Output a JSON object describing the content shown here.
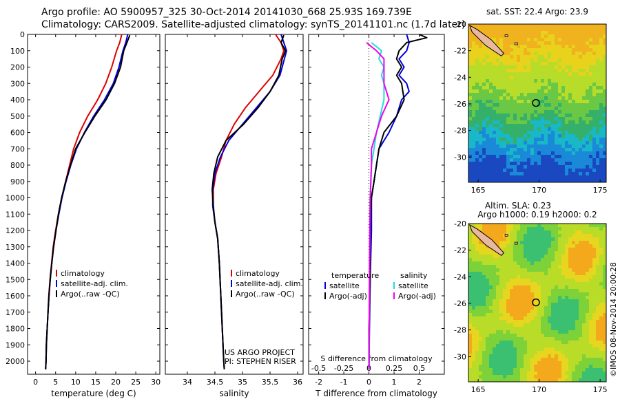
{
  "header": {
    "line1": "Argo profile: AO 5900957_325 30-Oct-2014 20141030_668 25.93S 169.739E",
    "line2": "Climatology: CARS2009. Satellite-adjusted climatology: synTS_20141101.nc (1.7d later)"
  },
  "colors": {
    "climatology": "#dd0000",
    "satellite": "#0000dd",
    "argo": "#000000",
    "argo_salinity_diff": "#ee00ee",
    "satellite_salinity_diff": "#00dddd",
    "map_marker": "#000000"
  },
  "chart_data": [
    {
      "type": "line",
      "title": "",
      "xlabel": "temperature (deg C)",
      "ylabel": "",
      "xlim": [
        -2,
        31
      ],
      "ylim": [
        2080,
        0
      ],
      "x_ticks": [
        "0",
        "5",
        "10",
        "15",
        "20",
        "25",
        "30"
      ],
      "y_ticks": [
        "0",
        "100",
        "200",
        "300",
        "400",
        "500",
        "600",
        "700",
        "800",
        "900",
        "1000",
        "1100",
        "1200",
        "1300",
        "1400",
        "1500",
        "1600",
        "1700",
        "1800",
        "1900",
        "2000"
      ],
      "legend": [
        "climatology",
        "satellite-adj. clim.",
        "Argo(..raw -QC)"
      ],
      "legend_position": "lower-center",
      "series": [
        {
          "name": "climatology",
          "color": "red",
          "points": [
            [
              21.5,
              0
            ],
            [
              21,
              50
            ],
            [
              20.2,
              100
            ],
            [
              19,
              200
            ],
            [
              17.5,
              300
            ],
            [
              15.5,
              400
            ],
            [
              13,
              500
            ],
            [
              11,
              600
            ],
            [
              9.5,
              700
            ],
            [
              8.5,
              800
            ],
            [
              7.5,
              900
            ],
            [
              6.5,
              1000
            ],
            [
              5.7,
              1100
            ],
            [
              5,
              1200
            ],
            [
              4.4,
              1300
            ],
            [
              4,
              1400
            ],
            [
              3.6,
              1500
            ],
            [
              3.3,
              1600
            ],
            [
              3.1,
              1700
            ],
            [
              2.9,
              1800
            ],
            [
              2.7,
              1900
            ],
            [
              2.6,
              2000
            ],
            [
              2.5,
              2050
            ]
          ]
        },
        {
          "name": "satellite-adj. clim.",
          "color": "blue",
          "points": [
            [
              23,
              0
            ],
            [
              22.5,
              50
            ],
            [
              21.8,
              100
            ],
            [
              20.8,
              200
            ],
            [
              19.4,
              300
            ],
            [
              17.2,
              400
            ],
            [
              14.5,
              500
            ],
            [
              12.2,
              600
            ],
            [
              10.2,
              700
            ],
            [
              8.8,
              800
            ],
            [
              7.6,
              900
            ],
            [
              6.6,
              1000
            ],
            [
              5.8,
              1100
            ],
            [
              5.1,
              1200
            ],
            [
              4.5,
              1300
            ],
            [
              4.05,
              1400
            ],
            [
              3.65,
              1500
            ],
            [
              3.35,
              1600
            ],
            [
              3.1,
              1700
            ],
            [
              2.9,
              1800
            ],
            [
              2.7,
              1900
            ],
            [
              2.6,
              2000
            ],
            [
              2.5,
              2050
            ]
          ]
        },
        {
          "name": "Argo(..raw -QC)",
          "color": "black",
          "points": [
            [
              23.5,
              5
            ],
            [
              22.8,
              50
            ],
            [
              22,
              100
            ],
            [
              21.2,
              200
            ],
            [
              19.7,
              300
            ],
            [
              17.6,
              400
            ],
            [
              14.8,
              500
            ],
            [
              12.3,
              600
            ],
            [
              10,
              700
            ],
            [
              8.7,
              800
            ],
            [
              7.5,
              900
            ],
            [
              6.5,
              1000
            ],
            [
              5.7,
              1100
            ],
            [
              5.1,
              1200
            ],
            [
              4.5,
              1300
            ],
            [
              4.05,
              1400
            ],
            [
              3.65,
              1500
            ],
            [
              3.35,
              1600
            ],
            [
              3.1,
              1700
            ],
            [
              2.9,
              1800
            ],
            [
              2.7,
              1900
            ],
            [
              2.6,
              2000
            ],
            [
              2.5,
              2050
            ]
          ]
        }
      ]
    },
    {
      "type": "line",
      "title": "",
      "xlabel": "salinity",
      "ylabel": "",
      "xlim": [
        33.6,
        36.1
      ],
      "ylim": [
        2080,
        0
      ],
      "x_ticks": [
        "34",
        "34.5",
        "35",
        "35.5",
        "36"
      ],
      "legend": [
        "climatology",
        "satellite-adj. clim.",
        "Argo(..raw -QC)"
      ],
      "legend_position": "lower-right",
      "annotation_lines": [
        "US ARGO PROJECT",
        "PI: STEPHEN RISER"
      ],
      "series": [
        {
          "name": "climatology",
          "color": "red",
          "points": [
            [
              35.6,
              0
            ],
            [
              35.7,
              50
            ],
            [
              35.75,
              100
            ],
            [
              35.7,
              150
            ],
            [
              35.55,
              250
            ],
            [
              35.3,
              350
            ],
            [
              35.05,
              450
            ],
            [
              34.85,
              550
            ],
            [
              34.7,
              650
            ],
            [
              34.62,
              750
            ],
            [
              34.52,
              850
            ],
            [
              34.47,
              950
            ],
            [
              34.47,
              1050
            ],
            [
              34.5,
              1150
            ],
            [
              34.55,
              1250
            ],
            [
              34.58,
              1400
            ],
            [
              34.6,
              1550
            ],
            [
              34.62,
              1700
            ],
            [
              34.64,
              1850
            ],
            [
              34.66,
              2000
            ],
            [
              34.67,
              2050
            ]
          ]
        },
        {
          "name": "satellite-adj. clim.",
          "color": "blue",
          "points": [
            [
              35.7,
              0
            ],
            [
              35.75,
              50
            ],
            [
              35.8,
              100
            ],
            [
              35.76,
              150
            ],
            [
              35.68,
              250
            ],
            [
              35.5,
              350
            ],
            [
              35.25,
              450
            ],
            [
              35,
              550
            ],
            [
              34.75,
              650
            ],
            [
              34.6,
              750
            ],
            [
              34.5,
              850
            ],
            [
              34.46,
              950
            ],
            [
              34.46,
              1050
            ],
            [
              34.5,
              1150
            ],
            [
              34.55,
              1250
            ],
            [
              34.58,
              1400
            ],
            [
              34.6,
              1550
            ],
            [
              34.62,
              1700
            ],
            [
              34.64,
              1850
            ],
            [
              34.66,
              2000
            ],
            [
              34.67,
              2050
            ]
          ]
        },
        {
          "name": "Argo(..raw -QC)",
          "color": "black",
          "points": [
            [
              35.75,
              5
            ],
            [
              35.7,
              50
            ],
            [
              35.78,
              100
            ],
            [
              35.72,
              150
            ],
            [
              35.66,
              250
            ],
            [
              35.5,
              350
            ],
            [
              35.28,
              450
            ],
            [
              35.02,
              550
            ],
            [
              34.7,
              650
            ],
            [
              34.55,
              750
            ],
            [
              34.48,
              850
            ],
            [
              34.45,
              950
            ],
            [
              34.47,
              1050
            ],
            [
              34.5,
              1150
            ],
            [
              34.55,
              1250
            ],
            [
              34.58,
              1400
            ],
            [
              34.6,
              1550
            ],
            [
              34.62,
              1700
            ],
            [
              34.64,
              1850
            ],
            [
              34.66,
              2000
            ],
            [
              34.67,
              2050
            ]
          ]
        }
      ]
    },
    {
      "type": "line",
      "title": "",
      "xlabel": "T difference from climatology",
      "xlabel_top": "S difference from climatology",
      "ylabel": "",
      "xlim": [
        -2.4,
        3
      ],
      "ylim": [
        2080,
        0
      ],
      "x_ticks_top": [
        "-0.5",
        "-0.25",
        "0",
        "0.25",
        "0.5"
      ],
      "x_ticks": [
        "-2",
        "-1",
        "0",
        "1",
        "2"
      ],
      "legend": [
        "temperature",
        "satellite",
        "Argo(-adj)",
        "salinity",
        "satellite",
        "Argo(-adj)"
      ],
      "legend_position": "lower-center",
      "series": [
        {
          "name": "T satellite",
          "color": "blue",
          "points": [
            [
              1.5,
              0
            ],
            [
              1.6,
              50
            ],
            [
              1.5,
              100
            ],
            [
              1.2,
              150
            ],
            [
              1.4,
              200
            ],
            [
              1.2,
              250
            ],
            [
              1.5,
              300
            ],
            [
              1.6,
              350
            ],
            [
              1.3,
              400
            ],
            [
              1.1,
              500
            ],
            [
              0.8,
              600
            ],
            [
              0.4,
              700
            ],
            [
              0.3,
              800
            ],
            [
              0.2,
              900
            ],
            [
              0.1,
              1000
            ],
            [
              0.1,
              1200
            ],
            [
              0.05,
              1500
            ],
            [
              0.02,
              1800
            ],
            [
              0,
              2050
            ]
          ]
        },
        {
          "name": "T Argo(-adj)",
          "color": "black",
          "points": [
            [
              2,
              0
            ],
            [
              2.3,
              20
            ],
            [
              1.5,
              50
            ],
            [
              1.2,
              100
            ],
            [
              1.1,
              150
            ],
            [
              1.3,
              200
            ],
            [
              1.1,
              250
            ],
            [
              1.3,
              300
            ],
            [
              1.4,
              400
            ],
            [
              1.1,
              500
            ],
            [
              0.6,
              600
            ],
            [
              0.4,
              700
            ],
            [
              0.3,
              800
            ],
            [
              0.2,
              900
            ],
            [
              0.1,
              1000
            ],
            [
              0.05,
              1200
            ],
            [
              0.05,
              1500
            ],
            [
              0,
              1800
            ],
            [
              0,
              2050
            ]
          ]
        },
        {
          "name": "S satellite",
          "color": "cyan",
          "points": [
            [
              0.1,
              50
            ],
            [
              0.5,
              100
            ],
            [
              0.4,
              150
            ],
            [
              0.6,
              200
            ],
            [
              0.5,
              250
            ],
            [
              0.6,
              300
            ],
            [
              0.6,
              400
            ],
            [
              0.3,
              600
            ],
            [
              0.2,
              700
            ],
            [
              0.1,
              800
            ],
            [
              0.05,
              1000
            ],
            [
              0.02,
              1500
            ],
            [
              0,
              2050
            ]
          ]
        },
        {
          "name": "S Argo(-adj)",
          "color": "magenta",
          "points": [
            [
              -0.1,
              50
            ],
            [
              0.3,
              100
            ],
            [
              0.6,
              150
            ],
            [
              0.6,
              200
            ],
            [
              0.6,
              300
            ],
            [
              0.8,
              400
            ],
            [
              0.5,
              500
            ],
            [
              0.3,
              600
            ],
            [
              0.1,
              700
            ],
            [
              0.1,
              800
            ],
            [
              0.05,
              1000
            ],
            [
              0.02,
              1500
            ],
            [
              0,
              2050
            ]
          ]
        }
      ]
    }
  ],
  "maps": {
    "sst": {
      "title": "sat. SST: 22.4 Argo: 23.9",
      "x_ticks": [
        "165",
        "170",
        "175"
      ],
      "y_ticks": [
        "-20",
        "-22",
        "-24",
        "-26",
        "-28",
        "-30"
      ],
      "xlim": [
        164.2,
        175.5
      ],
      "ylim": [
        -31.9,
        -20
      ],
      "marker": [
        169.74,
        -25.93
      ]
    },
    "sla": {
      "title_line1": "Altim. SLA: 0.23",
      "title_line2": "Argo h1000: 0.19 h2000: 0.2",
      "x_ticks": [
        "165",
        "170",
        "175"
      ],
      "y_ticks": [
        "-20",
        "-22",
        "-24",
        "-26",
        "-28",
        "-30"
      ],
      "xlim": [
        164.2,
        175.5
      ],
      "ylim": [
        -31.9,
        -20
      ],
      "marker": [
        169.74,
        -25.93
      ]
    }
  },
  "footer": {
    "credit": "©IMOS 08-Nov-2014 20:00:28"
  }
}
